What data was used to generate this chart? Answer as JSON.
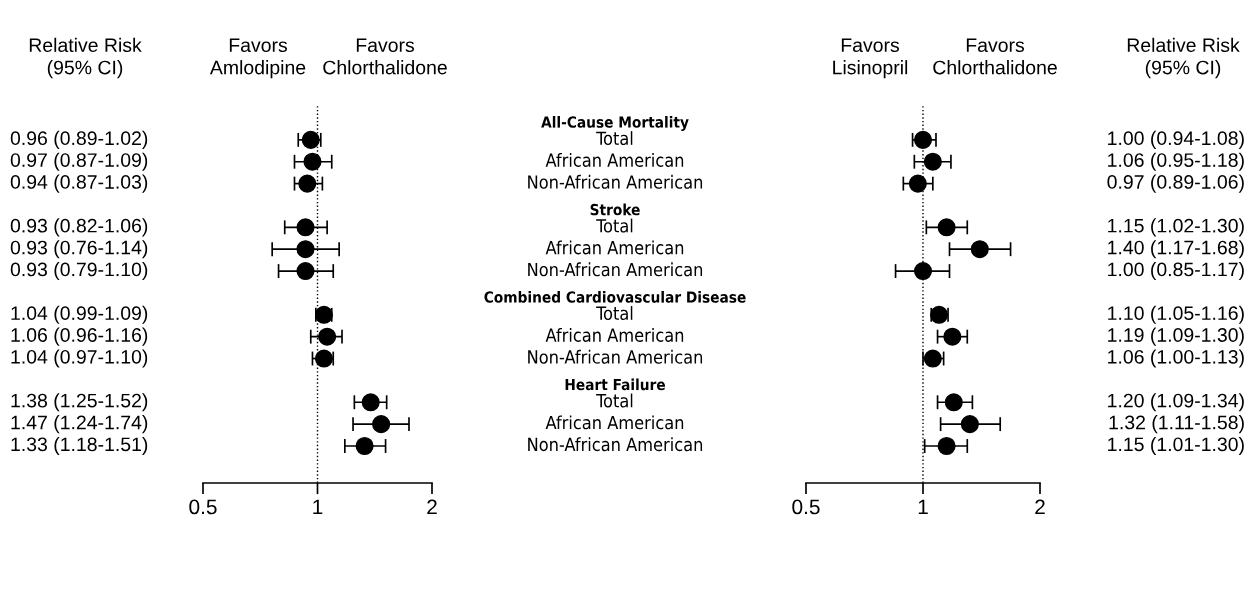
{
  "chart_data": [
    {
      "type": "scatter",
      "orientation": "horizontal",
      "log": "x",
      "marker": "circle",
      "color": "#000000",
      "categories": [
        "All-Cause Mortality",
        "Total",
        "African American",
        "Non-African American",
        "Stroke",
        "Total",
        "African American",
        "Non-African American",
        "Combined Cardiovascular Disease",
        "Total",
        "African American",
        "Non-African American",
        "Heart Failure",
        "Total",
        "African American",
        "Non-African American"
      ],
      "values": [
        null,
        0.96,
        0.97,
        0.94,
        null,
        0.93,
        0.93,
        0.93,
        null,
        1.04,
        1.06,
        1.04,
        null,
        1.38,
        1.47,
        1.33
      ],
      "errors": [
        null,
        [
          0.89,
          1.02
        ],
        [
          0.87,
          1.09
        ],
        [
          0.87,
          1.03
        ],
        null,
        [
          0.82,
          1.06
        ],
        [
          0.76,
          1.14
        ],
        [
          0.79,
          1.1
        ],
        null,
        [
          0.99,
          1.09
        ],
        [
          0.96,
          1.16
        ],
        [
          0.97,
          1.1
        ],
        null,
        [
          1.25,
          1.52
        ],
        [
          1.24,
          1.74
        ],
        [
          1.18,
          1.51
        ]
      ],
      "value_labels": [
        null,
        "0.96 (0.89-1.02)",
        "0.97 (0.87-1.09)",
        "0.94 (0.87-1.03)",
        null,
        "0.93 (0.82-1.06)",
        "0.93 (0.76-1.14)",
        "0.93 (0.79-1.10)",
        null,
        "1.04 (0.99-1.09)",
        "1.06 (0.96-1.16)",
        "1.04 (0.97-1.10)",
        null,
        "1.38 (1.25-1.52)",
        "1.47 (1.24-1.74)",
        "1.33 (1.18-1.51)"
      ],
      "xlim": [
        0.5,
        2
      ],
      "xticks": [
        0.5,
        1,
        2
      ],
      "ref_lines": [
        {
          "axis": "x",
          "value": 1,
          "line_style": "dotted",
          "color": "#000000"
        }
      ],
      "annotations": [
        "Relative Risk\n(95% CI)",
        "Favors\nAmlodipine",
        "Favors\nChlorthalidone"
      ]
    },
    {
      "type": "scatter",
      "orientation": "horizontal",
      "log": "x",
      "marker": "circle",
      "color": "#000000",
      "categories": [
        null,
        null,
        null,
        null,
        null,
        null,
        null,
        null,
        null,
        null,
        null,
        null,
        null,
        null,
        null,
        null
      ],
      "values": [
        null,
        1.0,
        1.06,
        0.97,
        null,
        1.15,
        1.4,
        1.0,
        null,
        1.1,
        1.19,
        1.06,
        null,
        1.2,
        1.32,
        1.15
      ],
      "errors": [
        null,
        [
          0.94,
          1.08
        ],
        [
          0.95,
          1.18
        ],
        [
          0.89,
          1.06
        ],
        null,
        [
          1.02,
          1.3
        ],
        [
          1.17,
          1.68
        ],
        [
          0.85,
          1.17
        ],
        null,
        [
          1.05,
          1.16
        ],
        [
          1.09,
          1.3
        ],
        [
          1.0,
          1.13
        ],
        null,
        [
          1.09,
          1.34
        ],
        [
          1.11,
          1.58
        ],
        [
          1.01,
          1.3
        ]
      ],
      "value_labels": [
        null,
        "1.00 (0.94-1.08)",
        "1.06 (0.95-1.18)",
        "0.97 (0.89-1.06)",
        null,
        "1.15 (1.02-1.30)",
        "1.40 (1.17-1.68)",
        "1.00 (0.85-1.17)",
        null,
        "1.10 (1.05-1.16)",
        "1.19 (1.09-1.30)",
        "1.06 (1.00-1.13)",
        null,
        "1.20 (1.09-1.34)",
        "1.32 (1.11-1.58)",
        "1.15 (1.01-1.30)"
      ],
      "xlim": [
        0.5,
        2
      ],
      "xticks": [
        0.5,
        1,
        2
      ],
      "ref_lines": [
        {
          "axis": "x",
          "value": 1,
          "line_style": "dotted",
          "color": "#000000"
        }
      ],
      "annotations": [
        "Favors\nLisinopril",
        "Favors\nChlorthalidone",
        "Relative Risk\n(95% CI)"
      ]
    }
  ]
}
